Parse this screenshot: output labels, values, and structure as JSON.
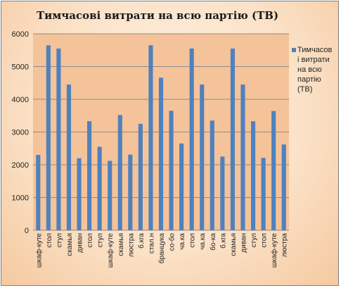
{
  "chart_data": {
    "type": "bar",
    "title": "Тимчасові витрати на всю партію (ТВ)",
    "xlabel": "",
    "ylabel": "",
    "ylim": [
      0,
      6000
    ],
    "yticks": [
      0,
      1000,
      2000,
      3000,
      4000,
      5000,
      6000
    ],
    "grid": true,
    "legend_position": "right",
    "categories": [
      "шкаф-куте",
      "стол",
      "стул",
      "скамья",
      "диван",
      "стол",
      "стул",
      "шкаф-куте",
      "скамья",
      "люстра",
      "б.кга",
      "стал.н",
      "бранцука",
      "со-бо",
      "ча.ка",
      "стол",
      "ча.ка",
      "бо-ка",
      "б.кга",
      "скамья",
      "диван",
      "стул",
      "стол",
      "шкаф-куте",
      "люстра"
    ],
    "series": [
      {
        "name": "Тимчасові витрати на всю партію (ТВ)",
        "color": "#4f81bd",
        "values": [
          2300,
          5650,
          5550,
          4450,
          2200,
          3330,
          2550,
          2120,
          3520,
          2310,
          3250,
          5650,
          4660,
          3650,
          2650,
          5550,
          4450,
          3350,
          2250,
          5550,
          4450,
          3330,
          2210,
          3640,
          2620
        ]
      }
    ]
  },
  "colors": {
    "plot_background": "#f5c399",
    "gridline": "#8c8c8c",
    "bar": "#4f81bd"
  }
}
